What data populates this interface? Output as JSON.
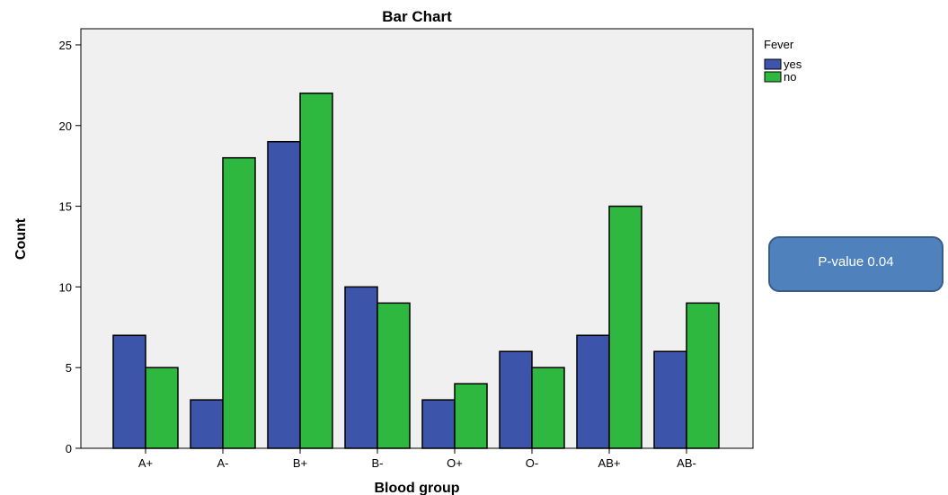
{
  "chart_data": {
    "type": "bar",
    "title": "Bar Chart",
    "xlabel": "Blood group",
    "ylabel": "Count",
    "categories": [
      "A+",
      "A-",
      "B+",
      "B-",
      "O+",
      "O-",
      "AB+",
      "AB-"
    ],
    "series": [
      {
        "name": "yes",
        "color": "#3c55aa",
        "values": [
          7,
          3,
          19,
          10,
          3,
          6,
          7,
          6
        ]
      },
      {
        "name": "no",
        "color": "#2fb83f",
        "values": [
          5,
          18,
          22,
          9,
          4,
          5,
          15,
          9
        ]
      }
    ],
    "ylim": [
      0,
      26
    ],
    "yticks": [
      0,
      5,
      10,
      15,
      20,
      25
    ],
    "legend": {
      "title": "Fever",
      "position": "top-right"
    },
    "plot_background": "#f0f0f0",
    "grid": false
  },
  "callout": {
    "text": "P-value 0.04"
  }
}
